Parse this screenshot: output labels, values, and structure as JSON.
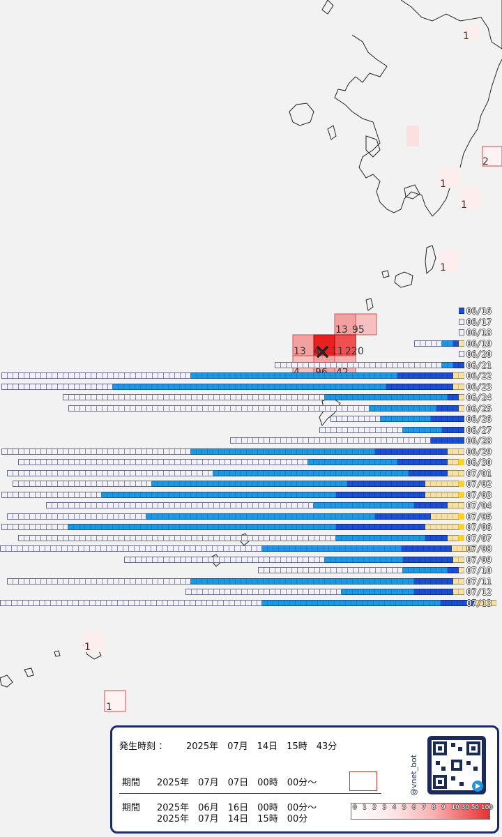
{
  "map": {
    "epicenter_label": "×",
    "grid_cells": [
      {
        "label": "1"
      },
      {
        "label": "2"
      },
      {
        "label": "1"
      },
      {
        "label": "1"
      },
      {
        "label": "1"
      },
      {
        "label": "13"
      },
      {
        "label": "95"
      },
      {
        "label": "13"
      },
      {
        "label": "4"
      },
      {
        "label": "11"
      },
      {
        "label": "22"
      },
      {
        "label": "0"
      },
      {
        "label": "4"
      },
      {
        "label": "96"
      },
      {
        "label": "42"
      },
      {
        "label": "1"
      },
      {
        "label": "1"
      }
    ]
  },
  "chart_data": {
    "type": "bar",
    "title": "",
    "categories": [
      "06/16",
      "06/17",
      "06/18",
      "06/19",
      "06/20",
      "06/21",
      "06/22",
      "06/23",
      "06/24",
      "06/25",
      "06/26",
      "06/27",
      "06/28",
      "06/29",
      "06/30",
      "07/01",
      "07/02",
      "07/03",
      "07/04",
      "07/05",
      "07/06",
      "07/07",
      "07/08",
      "07/09",
      "07/10",
      "07/11",
      "07/12",
      "07/13"
    ],
    "daily_counts_by_max_intensity": [
      {
        "date": "06/16",
        "i1": 0,
        "i2": 0,
        "i3": 1,
        "i4": 0,
        "i5": 0,
        "total": 1
      },
      {
        "date": "06/17",
        "i1": 1,
        "i2": 0,
        "i3": 0,
        "i4": 0,
        "i5": 0,
        "total": 1
      },
      {
        "date": "06/18",
        "i1": 1,
        "i2": 0,
        "i3": 0,
        "i4": 0,
        "i5": 0,
        "total": 1
      },
      {
        "date": "06/19",
        "i1": 5,
        "i2": 2,
        "i3": 1,
        "i4": 1,
        "i5": 0,
        "total": 9
      },
      {
        "date": "06/20",
        "i1": 1,
        "i2": 0,
        "i3": 0,
        "i4": 0,
        "i5": 0,
        "total": 1
      },
      {
        "date": "06/21",
        "i1": 30,
        "i2": 2,
        "i3": 2,
        "i4": 0,
        "i5": 0,
        "total": 34
      },
      {
        "date": "06/22",
        "i1": 34,
        "i2": 37,
        "i3": 10,
        "i4": 2,
        "i5": 0,
        "total": 83
      },
      {
        "date": "06/23",
        "i1": 20,
        "i2": 49,
        "i3": 12,
        "i4": 2,
        "i5": 0,
        "total": 83
      },
      {
        "date": "06/24",
        "i1": 47,
        "i2": 22,
        "i3": 2,
        "i4": 1,
        "i5": 0,
        "total": 72
      },
      {
        "date": "06/25",
        "i1": 54,
        "i2": 12,
        "i3": 4,
        "i4": 1,
        "i5": 0,
        "total": 71
      },
      {
        "date": "06/26",
        "i1": 9,
        "i2": 9,
        "i3": 6,
        "i4": 0,
        "i5": 0,
        "total": 24
      },
      {
        "date": "06/27",
        "i1": 15,
        "i2": 7,
        "i3": 4,
        "i4": 0,
        "i5": 0,
        "total": 26
      },
      {
        "date": "06/28",
        "i1": 36,
        "i2": 0,
        "i3": 6,
        "i4": 0,
        "i5": 0,
        "total": 42
      },
      {
        "date": "06/29",
        "i1": 34,
        "i2": 33,
        "i3": 13,
        "i4": 3,
        "i5": 0,
        "total": 83
      },
      {
        "date": "06/30",
        "i1": 52,
        "i2": 16,
        "i3": 9,
        "i4": 2,
        "i5": 1,
        "total": 80
      },
      {
        "date": "07/01",
        "i1": 37,
        "i2": 35,
        "i3": 7,
        "i4": 3,
        "i5": 0,
        "total": 82
      },
      {
        "date": "07/02",
        "i1": 25,
        "i2": 35,
        "i3": 14,
        "i4": 6,
        "i5": 1,
        "total": 81
      },
      {
        "date": "07/03",
        "i1": 18,
        "i2": 42,
        "i3": 16,
        "i4": 6,
        "i5": 1,
        "total": 83
      },
      {
        "date": "07/04",
        "i1": 48,
        "i2": 18,
        "i3": 6,
        "i4": 3,
        "i5": 0,
        "total": 75
      },
      {
        "date": "07/05",
        "i1": 25,
        "i2": 41,
        "i3": 10,
        "i4": 5,
        "i5": 1,
        "total": 82
      },
      {
        "date": "07/06",
        "i1": 12,
        "i2": 48,
        "i3": 16,
        "i4": 6,
        "i5": 1,
        "total": 83
      },
      {
        "date": "07/07",
        "i1": 57,
        "i2": 16,
        "i3": 4,
        "i4": 2,
        "i5": 1,
        "total": 80
      },
      {
        "date": "07/08",
        "i1": 47,
        "i2": 25,
        "i3": 9,
        "i4": 4,
        "i5": 0,
        "total": 85
      },
      {
        "date": "07/09",
        "i1": 36,
        "i2": 14,
        "i3": 9,
        "i4": 2,
        "i5": 0,
        "total": 61
      },
      {
        "date": "07/10",
        "i1": 26,
        "i2": 8,
        "i3": 2,
        "i4": 1,
        "i5": 0,
        "total": 37
      },
      {
        "date": "07/11",
        "i1": 33,
        "i2": 40,
        "i3": 7,
        "i4": 2,
        "i5": 0,
        "total": 82
      },
      {
        "date": "07/12",
        "i1": 28,
        "i2": 13,
        "i3": 7,
        "i4": 2,
        "i5": 0,
        "total": 50
      },
      {
        "date": "07/13",
        "i1": 47,
        "i2": 32,
        "i3": 6,
        "i4": 4,
        "i5": 0,
        "total": 89
      }
    ]
  },
  "info": {
    "occurrence_label": "発生時刻 ：",
    "occurrence_value": "2025年　07月　14日　15時　43分",
    "period1_label": "期間",
    "period1_value": "2025年　07月　07日　00時　00分～",
    "period2_label": "期間",
    "period2_line1": "2025年　06月　16日　00時　00分～",
    "period2_line2": "2025年　07月　14日　15時　00分",
    "qr_handle": "@vnet_bot",
    "scale_ticks": [
      "0",
      "1",
      "2",
      "3",
      "4",
      "5",
      "6",
      "7",
      "8",
      "9",
      "10",
      "30",
      "50",
      "100"
    ]
  },
  "colors": {
    "intensity1": "#f2f2f6",
    "intensity2": "#1e96e0",
    "intensity3": "#1b4fd0",
    "intensity4": "#f6e2a6",
    "intensity5": "#ffd21e",
    "intensity6": "#f08a10",
    "intensity7": "#e83020"
  }
}
